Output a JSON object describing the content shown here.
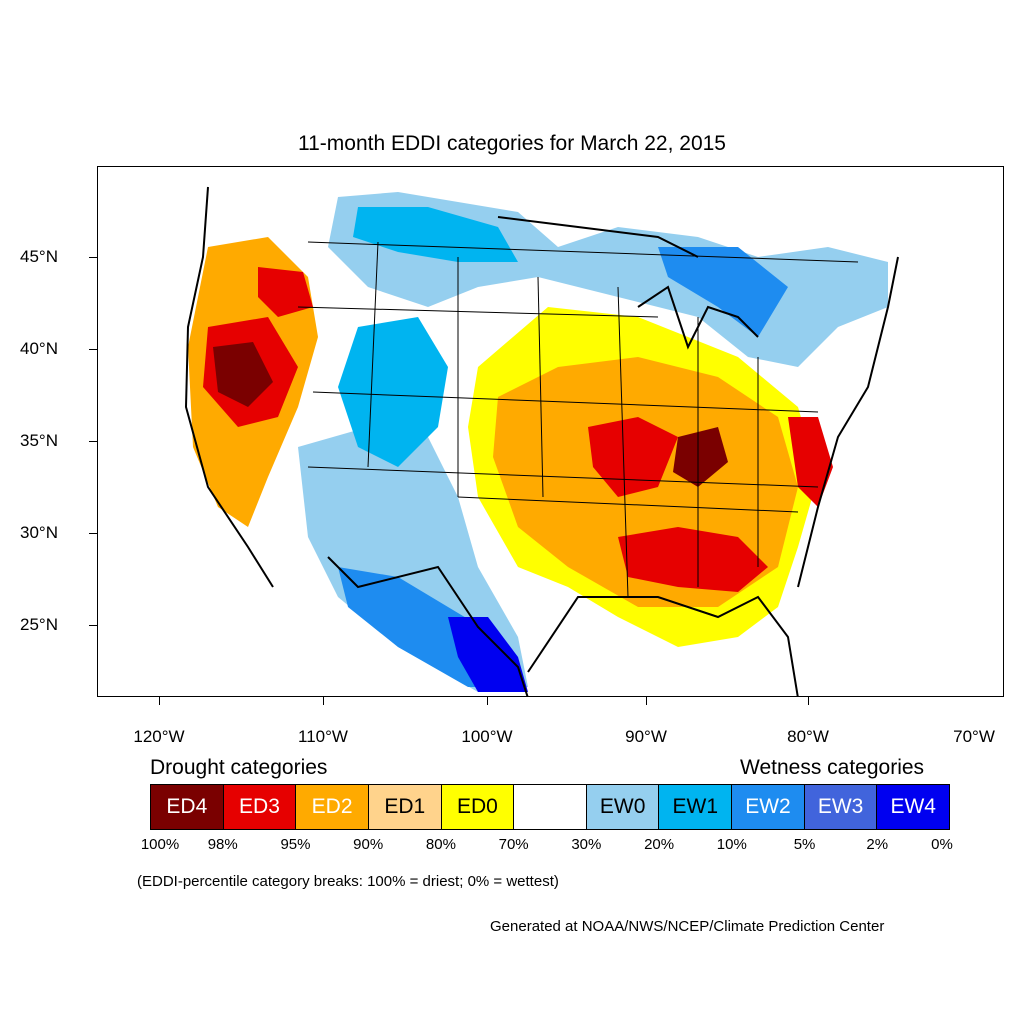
{
  "title": "11-month EDDI categories for March 22, 2015",
  "y_axis_ticks": [
    "45°N",
    "40°N",
    "35°N",
    "30°N",
    "25°N"
  ],
  "x_axis_ticks": [
    "120°W",
    "110°W",
    "100°W",
    "90°W",
    "80°W",
    "70°W"
  ],
  "drought_label": "Drought categories",
  "wetness_label": "Wetness categories",
  "legend": [
    {
      "label": "ED4",
      "color": "#7a0000",
      "text_color": "#ffffff"
    },
    {
      "label": "ED3",
      "color": "#e60000",
      "text_color": "#ffffff"
    },
    {
      "label": "ED2",
      "color": "#ffaa00",
      "text_color": "#ffffff"
    },
    {
      "label": "ED1",
      "color": "#ffd38c",
      "text_color": "#000000"
    },
    {
      "label": "ED0",
      "color": "#ffff00",
      "text_color": "#000000"
    },
    {
      "label": "",
      "color": "#ffffff",
      "text_color": "#000000"
    },
    {
      "label": "EW0",
      "color": "#95cfef",
      "text_color": "#000000"
    },
    {
      "label": "EW1",
      "color": "#00b4f0",
      "text_color": "#000000"
    },
    {
      "label": "EW2",
      "color": "#1e8cf0",
      "text_color": "#ffffff"
    },
    {
      "label": "EW3",
      "color": "#4164dc",
      "text_color": "#ffffff"
    },
    {
      "label": "EW4",
      "color": "#0000f0",
      "text_color": "#ffffff"
    }
  ],
  "percentiles": [
    "100%",
    "98%",
    "95%",
    "90%",
    "80%",
    "70%",
    "30%",
    "20%",
    "10%",
    "5%",
    "2%",
    "0%"
  ],
  "note": "(EDDI-percentile category breaks: 100% = driest; 0% = wettest)",
  "credit": "Generated at NOAA/NWS/NCEP/Climate Prediction Center"
}
